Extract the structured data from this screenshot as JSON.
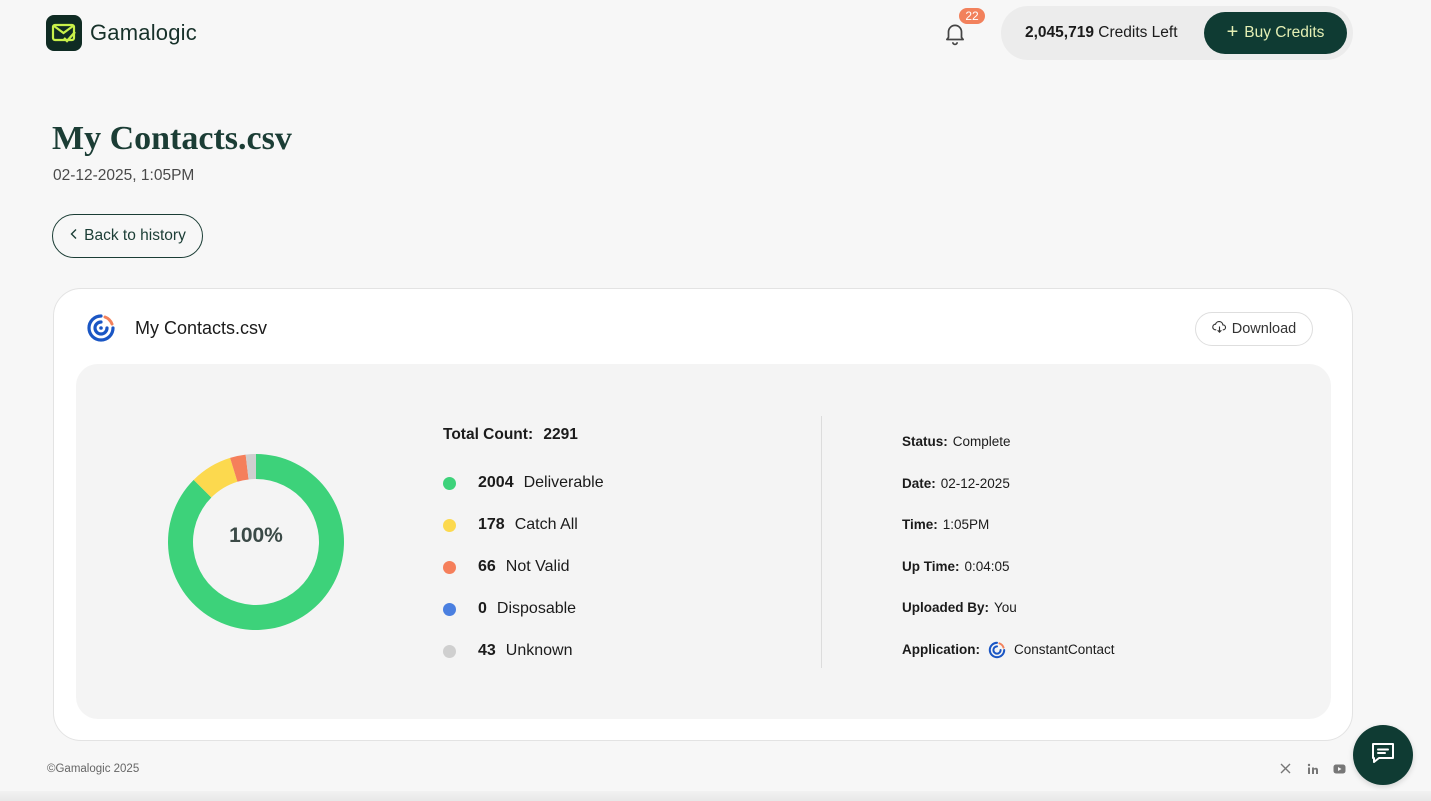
{
  "header": {
    "brand": "Gamalogic",
    "notification_count": "22",
    "credits_amount": "2,045,719",
    "credits_label": "Credits Left",
    "buy_label": "Buy Credits"
  },
  "page": {
    "title": "My Contacts.csv",
    "datetime": "02-12-2025, 1:05PM",
    "back_label": "Back to history"
  },
  "card": {
    "title": "My Contacts.csv",
    "download_label": "Download",
    "donut_center": "100%",
    "total_label": "Total Count:",
    "total_value": "2291",
    "legend": [
      {
        "count": "2004",
        "label": "Deliverable",
        "color": "#3dd27a"
      },
      {
        "count": "178",
        "label": "Catch All",
        "color": "#fcd94e"
      },
      {
        "count": "66",
        "label": "Not Valid",
        "color": "#f57f5b"
      },
      {
        "count": "0",
        "label": "Disposable",
        "color": "#4a7fe0"
      },
      {
        "count": "43",
        "label": "Unknown",
        "color": "#cfcfcf"
      }
    ],
    "meta": [
      {
        "key": "Status:",
        "value": "Complete"
      },
      {
        "key": "Date:",
        "value": "02-12-2025"
      },
      {
        "key": "Time:",
        "value": "1:05PM"
      },
      {
        "key": "Up Time:",
        "value": "0:04:05"
      },
      {
        "key": "Uploaded By:",
        "value": "You"
      },
      {
        "key": "Application:",
        "value": "ConstantContact"
      }
    ]
  },
  "chart_data": {
    "type": "pie",
    "categories": [
      "Deliverable",
      "Catch All",
      "Not Valid",
      "Disposable",
      "Unknown"
    ],
    "values": [
      2004,
      178,
      66,
      0,
      43
    ],
    "colors": [
      "#3dd27a",
      "#fcd94e",
      "#f57f5b",
      "#4a7fe0",
      "#cfcfcf"
    ],
    "style": "donut",
    "center_label": "100%"
  },
  "footer": {
    "copyright": "©Gamalogic 2025",
    "socials": [
      "x-icon",
      "linkedin-icon",
      "youtube-icon"
    ]
  }
}
